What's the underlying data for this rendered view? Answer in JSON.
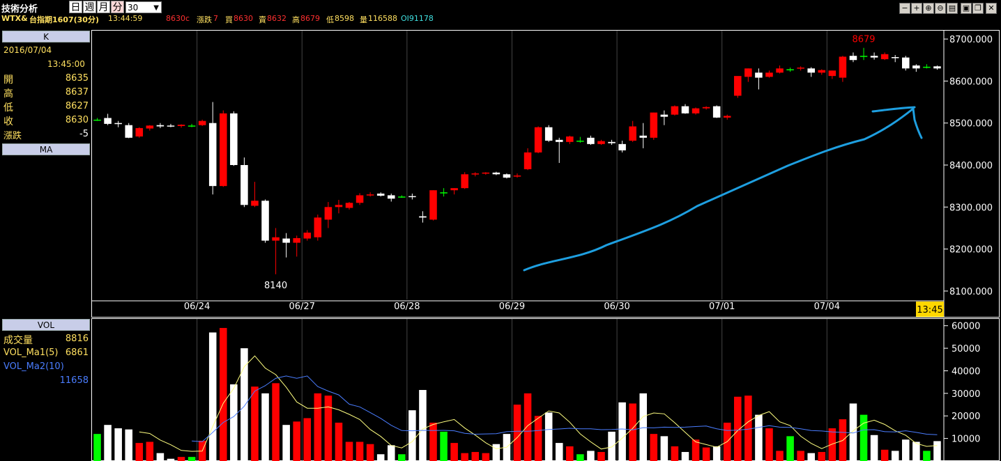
{
  "toolbar": {
    "title": "技術分析",
    "periods": [
      "日",
      "週",
      "月",
      "分"
    ],
    "active_period": "分",
    "interval": "30",
    "window_buttons": [
      "minus-icon",
      "plus-icon",
      "zoom-in-icon",
      "zoom-out-icon",
      "print-icon",
      "save-icon",
      "restore-icon",
      "close-icon"
    ]
  },
  "quote": {
    "symbol": "WTX&",
    "name": "台指期1607(30分)",
    "time": "13:44:59",
    "price": "8630c",
    "change_label": "漲跌",
    "change": "7",
    "bid_label": "買",
    "bid": "8630",
    "ask_label": "賣",
    "ask": "8632",
    "high_label": "高",
    "high": "8679",
    "low_label": "低",
    "low": "8598",
    "volume_label": "量",
    "volume": "116588",
    "oi": "OI91178"
  },
  "k_panel": {
    "header": "K",
    "date": "2016/07/04",
    "time": "13:45:00",
    "rows": [
      {
        "label": "開",
        "value": "8635"
      },
      {
        "label": "高",
        "value": "8637"
      },
      {
        "label": "低",
        "value": "8627"
      },
      {
        "label": "收",
        "value": "8630"
      },
      {
        "label": "漲跌",
        "value": "-5"
      }
    ]
  },
  "ma_panel": {
    "header": "MA"
  },
  "vol_panel": {
    "header": "VOL",
    "rows": [
      {
        "label": "成交量",
        "value": "8816"
      },
      {
        "label": "VOL_Ma1(5)",
        "value": "6861"
      },
      {
        "label": "VOL_Ma2(10)",
        "value": ""
      },
      {
        "label": "",
        "value": "11658"
      }
    ]
  },
  "colors": {
    "up": "#ff0000",
    "down": "#ffffff",
    "flat": "#00ff00",
    "vol_ma1": "#ffff80",
    "vol_ma2": "#4a7dff",
    "annotation": "#1e9fe0",
    "current_time_bg": "#ffd700"
  },
  "chart_data": [
    {
      "type": "candlestick",
      "ylim": [
        8080,
        8720
      ],
      "yticks": [
        "8700.000",
        "8600.000",
        "8500.000",
        "8400.000",
        "8300.000",
        "8200.000",
        "8100.000"
      ],
      "ytick_values": [
        8700,
        8600,
        8500,
        8400,
        8300,
        8200,
        8100
      ],
      "x_labels": [
        "06/24",
        "06/27",
        "06/28",
        "06/29",
        "06/30",
        "07/01",
        "07/04"
      ],
      "x_label_index": [
        10,
        20,
        30,
        40,
        50,
        60,
        70
      ],
      "current_time": "13:45",
      "annotations": [
        {
          "text": "8679",
          "index": 73,
          "value": 8679,
          "kind": "high"
        },
        {
          "text": "8140",
          "index": 17,
          "value": 8140,
          "kind": "low"
        }
      ],
      "candles": [
        [
          8508,
          8512,
          8505,
          8508
        ],
        [
          8512,
          8522,
          8495,
          8498
        ],
        [
          8500,
          8505,
          8490,
          8499
        ],
        [
          8495,
          8500,
          8464,
          8465
        ],
        [
          8468,
          8490,
          8465,
          8488
        ],
        [
          8487,
          8495,
          8482,
          8494
        ],
        [
          8495,
          8500,
          8488,
          8492
        ],
        [
          8494,
          8498,
          8490,
          8493
        ],
        [
          8493,
          8497,
          8489,
          8496
        ],
        [
          8494,
          8498,
          8490,
          8494
        ],
        [
          8495,
          8508,
          8493,
          8505
        ],
        [
          8500,
          8550,
          8330,
          8350
        ],
        [
          8350,
          8530,
          8348,
          8523
        ],
        [
          8523,
          8528,
          8398,
          8400
        ],
        [
          8400,
          8418,
          8300,
          8305
        ],
        [
          8303,
          8360,
          8300,
          8315
        ],
        [
          8315,
          8318,
          8215,
          8220
        ],
        [
          8220,
          8250,
          8140,
          8228
        ],
        [
          8225,
          8238,
          8180,
          8215
        ],
        [
          8215,
          8232,
          8182,
          8226
        ],
        [
          8225,
          8245,
          8220,
          8239
        ],
        [
          8228,
          8282,
          8220,
          8275
        ],
        [
          8270,
          8312,
          8250,
          8300
        ],
        [
          8300,
          8317,
          8285,
          8305
        ],
        [
          8298,
          8312,
          8294,
          8310
        ],
        [
          8310,
          8333,
          8305,
          8328
        ],
        [
          8328,
          8335,
          8325,
          8330
        ],
        [
          8332,
          8335,
          8325,
          8327
        ],
        [
          8328,
          8332,
          8313,
          8320
        ],
        [
          8325,
          8328,
          8322,
          8325
        ],
        [
          8326,
          8332,
          8318,
          8324
        ],
        [
          8278,
          8290,
          8263,
          8275
        ],
        [
          8270,
          8340,
          8268,
          8340
        ],
        [
          8335,
          8345,
          8325,
          8335
        ],
        [
          8340,
          8345,
          8330,
          8345
        ],
        [
          8345,
          8383,
          8343,
          8378
        ],
        [
          8378,
          8383,
          8373,
          8380
        ],
        [
          8380,
          8383,
          8377,
          8382
        ],
        [
          8382,
          8384,
          8376,
          8378
        ],
        [
          8378,
          8380,
          8368,
          8370
        ],
        [
          8373,
          8380,
          8370,
          8375
        ],
        [
          8390,
          8440,
          8388,
          8430
        ],
        [
          8430,
          8492,
          8428,
          8490
        ],
        [
          8490,
          8495,
          8455,
          8458
        ],
        [
          8460,
          8465,
          8405,
          8455
        ],
        [
          8455,
          8470,
          8450,
          8468
        ],
        [
          8458,
          8467,
          8453,
          8458
        ],
        [
          8465,
          8470,
          8448,
          8450
        ],
        [
          8450,
          8460,
          8448,
          8457
        ],
        [
          8455,
          8460,
          8448,
          8452
        ],
        [
          8450,
          8458,
          8430,
          8435
        ],
        [
          8458,
          8505,
          8455,
          8492
        ],
        [
          8470,
          8500,
          8440,
          8465
        ],
        [
          8465,
          8525,
          8460,
          8525
        ],
        [
          8520,
          8530,
          8495,
          8515
        ],
        [
          8520,
          8542,
          8518,
          8540
        ],
        [
          8540,
          8545,
          8522,
          8523
        ],
        [
          8523,
          8537,
          8520,
          8535
        ],
        [
          8535,
          8540,
          8532,
          8538
        ],
        [
          8540,
          8542,
          8512,
          8513
        ],
        [
          8513,
          8520,
          8508,
          8517
        ],
        [
          8565,
          8610,
          8560,
          8612
        ],
        [
          8610,
          8630,
          8598,
          8630
        ],
        [
          8620,
          8630,
          8580,
          8608
        ],
        [
          8610,
          8625,
          8608,
          8620
        ],
        [
          8620,
          8637,
          8618,
          8630
        ],
        [
          8628,
          8632,
          8622,
          8628
        ],
        [
          8630,
          8635,
          8625,
          8632
        ],
        [
          8630,
          8633,
          8610,
          8620
        ],
        [
          8620,
          8628,
          8615,
          8626
        ],
        [
          8612,
          8625,
          8605,
          8625
        ],
        [
          8608,
          8660,
          8598,
          8658
        ],
        [
          8660,
          8668,
          8645,
          8650
        ],
        [
          8660,
          8679,
          8650,
          8660
        ],
        [
          8660,
          8668,
          8651,
          8656
        ],
        [
          8652,
          8668,
          8650,
          8664
        ],
        [
          8657,
          8662,
          8645,
          8655
        ],
        [
          8656,
          8660,
          8625,
          8630
        ],
        [
          8637,
          8640,
          8622,
          8630
        ],
        [
          8634,
          8640,
          8630,
          8634
        ],
        [
          8635,
          8637,
          8627,
          8630
        ]
      ]
    },
    {
      "type": "bar",
      "title": "VOL",
      "ylim": [
        0,
        63000
      ],
      "yticks": [
        "60000",
        "50000",
        "40000",
        "30000",
        "20000",
        "10000"
      ],
      "ytick_values": [
        60000,
        50000,
        40000,
        30000,
        20000,
        10000
      ],
      "volumes": [
        12000,
        16000,
        14500,
        14000,
        8000,
        8500,
        3500,
        1000,
        1800,
        1800,
        9000,
        57000,
        59000,
        34000,
        50000,
        33000,
        30000,
        34500,
        16000,
        17500,
        19000,
        30000,
        29000,
        17000,
        8500,
        8500,
        7500,
        3000,
        7000,
        3000,
        22500,
        31500,
        17000,
        13000,
        8000,
        3500,
        4000,
        3500,
        7500,
        12000,
        25000,
        30000,
        20000,
        21500,
        8000,
        6500,
        3000,
        4500,
        4000,
        13000,
        26000,
        25500,
        30000,
        12000,
        11000,
        6500,
        4000,
        9500,
        6000,
        6500,
        17000,
        28500,
        29000,
        20500,
        14500,
        4500,
        11000,
        4500,
        3500,
        4000,
        14500,
        18500,
        25500,
        20500,
        11500,
        5000,
        4500,
        9500,
        8500,
        4500,
        8816
      ],
      "series": [
        {
          "name": "VOL_Ma1(5)",
          "values": [
            null,
            null,
            null,
            null,
            12900,
            12200,
            9300,
            7200,
            4700,
            4300,
            4400,
            15300,
            25600,
            32200,
            41800,
            46600,
            41200,
            38300,
            32700,
            26200,
            23400,
            23400,
            24000,
            22700,
            20700,
            18400,
            14000,
            10900,
            6900,
            5800,
            8600,
            14200,
            16200,
            17400,
            18400,
            14600,
            11500,
            8100,
            5400,
            6100,
            10400,
            15700,
            19000,
            22200,
            21300,
            17200,
            12000,
            8500,
            5300,
            6200,
            10100,
            14500,
            19700,
            21300,
            20900,
            17000,
            12700,
            8500,
            7300,
            6100,
            8600,
            13500,
            17400,
            20200,
            21900,
            17400,
            15700,
            11000,
            7800,
            5500,
            7500,
            9100,
            13400,
            16800,
            18100,
            16200,
            13400,
            11400,
            7800,
            6500,
            6861
          ]
        },
        {
          "name": "VOL_Ma2(10)",
          "values": [
            null,
            null,
            null,
            null,
            null,
            null,
            null,
            null,
            null,
            8900,
            8600,
            12700,
            17100,
            19700,
            24300,
            31000,
            33400,
            36700,
            37700,
            36700,
            37700,
            33000,
            31000,
            29300,
            25200,
            24000,
            21500,
            18900,
            15800,
            13500,
            13400,
            13600,
            13500,
            13600,
            13400,
            12300,
            11900,
            12000,
            12100,
            13000,
            13200,
            13200,
            13500,
            14000,
            14200,
            14500,
            14300,
            14300,
            13900,
            14000,
            14200,
            13800,
            14800,
            14700,
            15000,
            14900,
            15000,
            15300,
            15500,
            14300,
            13500,
            13700,
            14100,
            14900,
            15700,
            15000,
            14900,
            14300,
            13500,
            13300,
            12900,
            12700,
            12400,
            13800,
            13900,
            13000,
            12900,
            13400,
            12700,
            11900,
            11658
          ]
        }
      ]
    }
  ]
}
